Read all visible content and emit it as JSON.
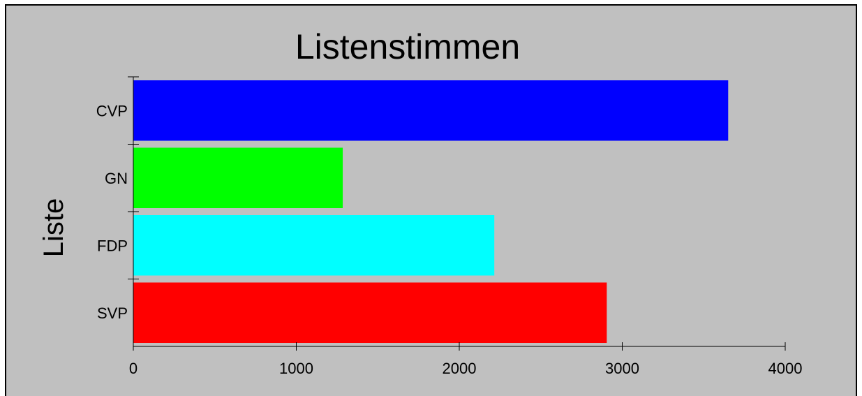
{
  "chart_data": {
    "type": "bar",
    "orientation": "horizontal",
    "title": "Listenstimmen",
    "xlabel": "",
    "ylabel": "Liste",
    "categories": [
      "CVP",
      "GN",
      "FDP",
      "SVP"
    ],
    "values": [
      3650,
      1285,
      2215,
      2905
    ],
    "bar_colors": [
      "#0000ff",
      "#00ff00",
      "#00ffff",
      "#ff0000"
    ],
    "xlim": [
      0,
      4000
    ],
    "xticks": [
      "0",
      "1000",
      "2000",
      "3000",
      "4000"
    ],
    "grid": false,
    "background": "#c0c0c0"
  }
}
